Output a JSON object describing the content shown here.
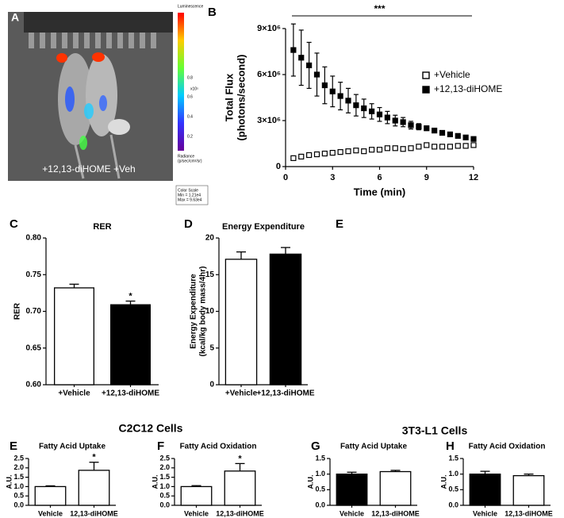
{
  "image_panel": {
    "label": "A",
    "caption": "+12,13-diHOME   +Veh",
    "colorbar_title": "Luminescence",
    "colorbar_ticks": [
      "0.8",
      "0.6",
      "0.4",
      "0.2"
    ],
    "colorbar_unit": "x10⁵",
    "radiance": [
      "Radiance",
      "(p/sec/cm²/sr)"
    ],
    "color_scale": [
      "Color Scale",
      "Min = 1.21e4",
      "Max = 9.63e4"
    ]
  },
  "panel_e_label": "E",
  "group_titles": [
    "C2C12 Cells",
    "3T3-L1 Cells"
  ],
  "chart_data": [
    {
      "type": "scatter",
      "panel": "B",
      "significance": "***",
      "xlabel": "Time (min)",
      "ylabel": [
        "Total Flux",
        "(photons/second)"
      ],
      "xlim": [
        0,
        12
      ],
      "xticks": [
        0,
        3,
        6,
        9,
        12
      ],
      "ylim": [
        0,
        9000000
      ],
      "yticks": [
        0,
        {
          "value": 3000000,
          "label": "3×10⁶"
        },
        {
          "value": 6000000,
          "label": "6×10⁶"
        },
        {
          "value": 9000000,
          "label": "9×10⁶"
        }
      ],
      "legend": "right",
      "x": [
        0.5,
        1,
        1.5,
        2,
        2.5,
        3,
        3.5,
        4,
        4.5,
        5,
        5.5,
        6,
        6.5,
        7,
        7.5,
        8,
        8.5,
        9,
        9.5,
        10,
        10.5,
        11,
        11.5,
        12
      ],
      "series": [
        {
          "name": "+Vehicle",
          "color": "#ffffff",
          "values": [
            550000,
            650000,
            750000,
            800000,
            850000,
            900000,
            950000,
            1000000,
            1050000,
            1000000,
            1100000,
            1100000,
            1200000,
            1200000,
            1150000,
            1200000,
            1300000,
            1400000,
            1300000,
            1300000,
            1300000,
            1350000,
            1350000,
            1400000
          ]
        },
        {
          "name": "+12,13-diHOME",
          "color": "#000000",
          "values": [
            7600000,
            7100000,
            6600000,
            6000000,
            5300000,
            4900000,
            4600000,
            4300000,
            4000000,
            3800000,
            3600000,
            3400000,
            3200000,
            3000000,
            2900000,
            2700000,
            2600000,
            2500000,
            2350000,
            2200000,
            2100000,
            2000000,
            1900000,
            1800000
          ],
          "errors": [
            1700000,
            1800000,
            1500000,
            1400000,
            1200000,
            1000000,
            900000,
            800000,
            700000,
            600000,
            500000,
            450000,
            400000,
            350000,
            300000,
            250000,
            200000,
            150000,
            150000,
            100000,
            100000,
            100000,
            100000,
            100000
          ]
        }
      ]
    },
    {
      "type": "bar",
      "panel": "C",
      "title": "RER",
      "ylabel": [
        "RER"
      ],
      "categories": [
        "+Vehicle",
        "+12,13-diHOME"
      ],
      "values": [
        0.732,
        0.709
      ],
      "errors": [
        0.005,
        0.005
      ],
      "colors": [
        "#ffffff",
        "#000000"
      ],
      "significance": [
        null,
        "*"
      ],
      "ylim": [
        0.6,
        0.8
      ],
      "yticks": [
        {
          "value": 0.6,
          "label": "0.60"
        },
        0.65,
        {
          "value": 0.7,
          "label": "0.70"
        },
        0.75,
        {
          "value": 0.8,
          "label": "0.80"
        }
      ]
    },
    {
      "type": "bar",
      "panel": "D",
      "title": "Energy Expenditure",
      "ylabel": [
        "Energy Expenditure",
        "(kcal/kg body mass/4hr)"
      ],
      "categories": [
        "+Vehicle",
        "+12,13-diHOME"
      ],
      "values": [
        17.1,
        17.8
      ],
      "errors": [
        1.0,
        0.9
      ],
      "colors": [
        "#ffffff",
        "#000000"
      ],
      "significance": [
        null,
        null
      ],
      "ylim": [
        0,
        20
      ],
      "yticks": [
        0,
        5,
        10,
        15,
        20
      ]
    },
    {
      "type": "bar",
      "panel": "E",
      "title": "Fatty Acid Uptake",
      "ylabel": [
        "A.U."
      ],
      "categories": [
        "Vehicle",
        "12,13-diHOME"
      ],
      "values": [
        1.0,
        1.87
      ],
      "errors": [
        0.04,
        0.43
      ],
      "colors": [
        "#ffffff",
        "#ffffff"
      ],
      "significance": [
        null,
        "*"
      ],
      "ylim": [
        0,
        2.5
      ],
      "yticks": [
        {
          "value": 0,
          "label": "0.0"
        },
        0.5,
        {
          "value": 1,
          "label": "1.0"
        },
        1.5,
        {
          "value": 2,
          "label": "2.0"
        },
        2.5
      ]
    },
    {
      "type": "bar",
      "panel": "F",
      "title": "Fatty Acid Oxidation",
      "ylabel": [
        "A.U."
      ],
      "categories": [
        "Vehicle",
        "12,13-diHOME"
      ],
      "values": [
        1.0,
        1.83
      ],
      "errors": [
        0.05,
        0.4
      ],
      "colors": [
        "#ffffff",
        "#ffffff"
      ],
      "significance": [
        null,
        "*"
      ],
      "ylim": [
        0,
        2.5
      ],
      "yticks": [
        {
          "value": 0,
          "label": "0.0"
        },
        0.5,
        {
          "value": 1,
          "label": "1.0"
        },
        1.5,
        {
          "value": 2,
          "label": "2.0"
        },
        2.5
      ]
    },
    {
      "type": "bar",
      "panel": "G",
      "title": "Fatty Acid Uptake",
      "ylabel": [
        "A.U."
      ],
      "categories": [
        "Vehicle",
        "12,13-diHOME"
      ],
      "values": [
        1.0,
        1.08
      ],
      "errors": [
        0.06,
        0.04
      ],
      "colors": [
        "#000000",
        "#ffffff"
      ],
      "significance": [
        null,
        null
      ],
      "ylim": [
        0,
        1.5
      ],
      "yticks": [
        {
          "value": 0,
          "label": "0.0"
        },
        0.5,
        {
          "value": 1,
          "label": "1.0"
        },
        1.5
      ]
    },
    {
      "type": "bar",
      "panel": "H",
      "title": "Fatty Acid Oxidation",
      "ylabel": [
        "A.U."
      ],
      "categories": [
        "Vehicle",
        "12,13-diHOME"
      ],
      "values": [
        1.0,
        0.95
      ],
      "errors": [
        0.09,
        0.05
      ],
      "colors": [
        "#000000",
        "#ffffff"
      ],
      "significance": [
        null,
        null
      ],
      "ylim": [
        0,
        1.5
      ],
      "yticks": [
        {
          "value": 0,
          "label": "0.0"
        },
        0.5,
        {
          "value": 1,
          "label": "1.0"
        },
        1.5
      ]
    }
  ]
}
